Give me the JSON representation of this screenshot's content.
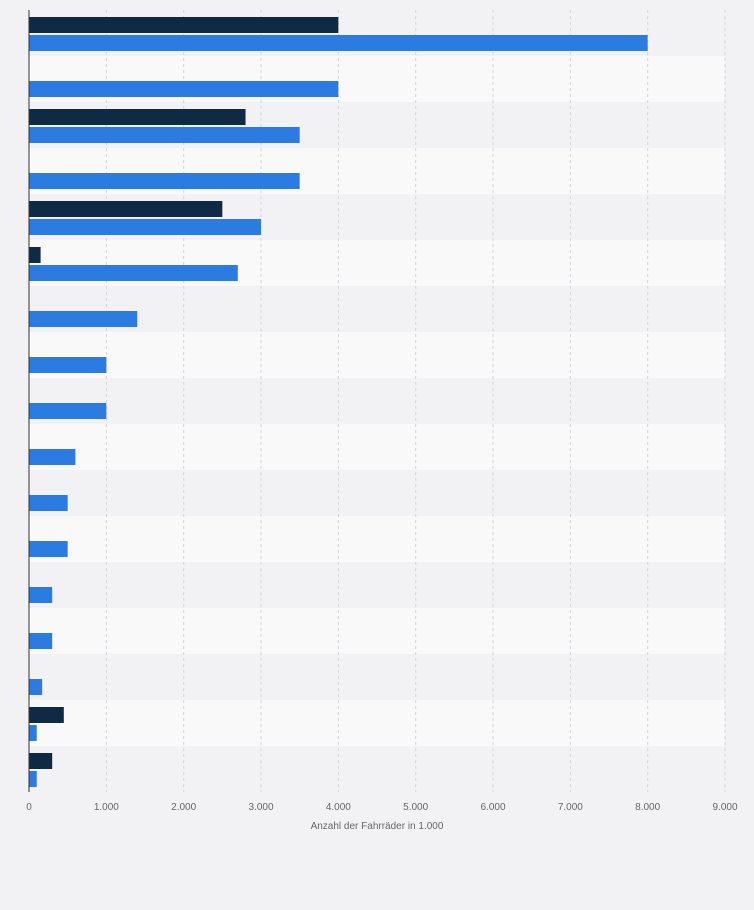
{
  "chart_data": {
    "type": "bar",
    "orientation": "horizontal",
    "xlabel": "Anzahl der Fahrräder in 1.000",
    "xlim": [
      0,
      9000
    ],
    "x_ticks": [
      0,
      1000,
      2000,
      3000,
      4000,
      5000,
      6000,
      7000,
      8000,
      9000
    ],
    "x_tick_labels": [
      "0",
      "1.000",
      "2.000",
      "3.000",
      "4.000",
      "5.000",
      "6.000",
      "7.000",
      "8.000",
      "9.000"
    ],
    "grid": true,
    "category_count": 17,
    "series": [
      {
        "color": "#0f2a44",
        "values": [
          4000,
          null,
          2800,
          null,
          2500,
          150,
          null,
          null,
          null,
          null,
          null,
          null,
          null,
          null,
          null,
          450,
          300
        ]
      },
      {
        "color": "#2b7be0",
        "values": [
          8000,
          4000,
          3500,
          3500,
          3000,
          2700,
          1400,
          1000,
          1000,
          600,
          500,
          500,
          300,
          300,
          170,
          100,
          100
        ]
      }
    ]
  }
}
